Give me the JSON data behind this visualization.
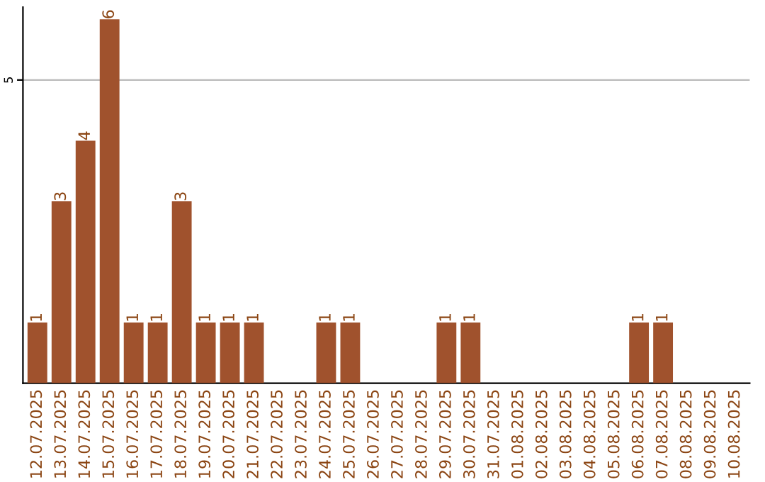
{
  "chart_data": {
    "type": "bar",
    "categories": [
      "12.07.2025",
      "13.07.2025",
      "14.07.2025",
      "15.07.2025",
      "16.07.2025",
      "17.07.2025",
      "18.07.2025",
      "19.07.2025",
      "20.07.2025",
      "21.07.2025",
      "22.07.2025",
      "23.07.2025",
      "24.07.2025",
      "25.07.2025",
      "26.07.2025",
      "27.07.2025",
      "28.07.2025",
      "29.07.2025",
      "30.07.2025",
      "31.07.2025",
      "01.08.2025",
      "02.08.2025",
      "03.08.2025",
      "04.08.2025",
      "05.08.2025",
      "06.08.2025",
      "07.08.2025",
      "08.08.2025",
      "09.08.2025",
      "10.08.2025"
    ],
    "values": [
      1,
      3,
      4,
      6,
      1,
      1,
      3,
      1,
      1,
      1,
      0,
      0,
      1,
      1,
      0,
      0,
      0,
      1,
      1,
      0,
      0,
      0,
      0,
      0,
      0,
      1,
      1,
      0,
      0,
      0
    ],
    "value_labels": [
      "1",
      "3",
      "4",
      "6",
      "1",
      "1",
      "3",
      "1",
      "1",
      "1",
      null,
      null,
      "1",
      "1",
      null,
      null,
      null,
      "1",
      "1",
      null,
      null,
      null,
      null,
      null,
      null,
      "1",
      "1",
      null,
      null,
      null
    ],
    "color": "#a0522d",
    "ylim": [
      0,
      6.2
    ],
    "yticks": [
      5
    ],
    "grid": "y",
    "legend": false
  }
}
